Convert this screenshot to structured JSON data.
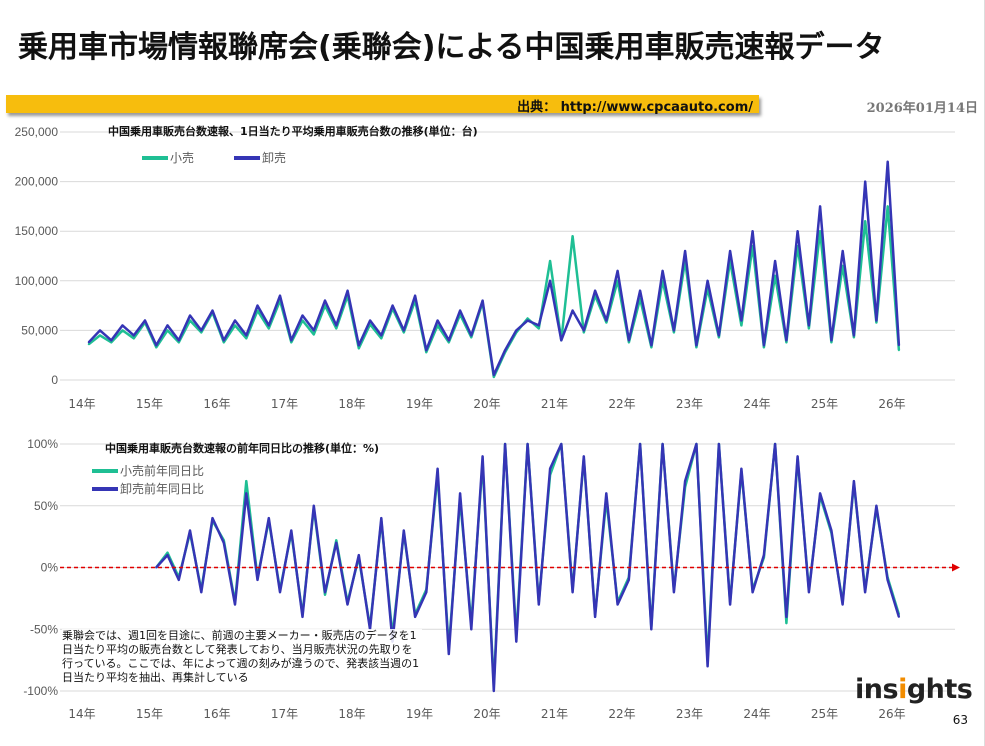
{
  "header": {
    "title": "乗用車市場情報聯席会(乗聯会)による中国乗用車販売速報データ",
    "source": "出典： http://www.cpcaauto.com/",
    "date": "2026年01月14日"
  },
  "note": "乗聯会では、週1回を目途に、前週の主要メーカー・販売店のデータを1日当たり平均の販売台数として発表しており、当月販売状況の先取りを行っている。ここでは、年によって週の刻みが違うので、発表該当週の1日当たり平均を抽出、再集計している",
  "logo": "insights",
  "page_number": "63",
  "colors": {
    "retail": "#1fbf94",
    "wholesale": "#3535b5",
    "zero_line": "#e00000",
    "source_bar": "#f7bd0d"
  },
  "chart_data": [
    {
      "type": "line",
      "title": "中国乗用車販売台数速報、1日当たり平均乗用車販売台数の推移(単位：台)",
      "ylim": [
        0,
        250000
      ],
      "yticks": [
        "0",
        "50,000",
        "100,000",
        "150,000",
        "200,000",
        "250,000"
      ],
      "ytick_values": [
        0,
        50000,
        100000,
        150000,
        200000,
        250000
      ],
      "xlim": [
        2014,
        2026.4
      ],
      "xticks": [
        "14年",
        "15年",
        "16年",
        "17年",
        "18年",
        "19年",
        "20年",
        "21年",
        "22年",
        "23年",
        "24年",
        "25年",
        "26年"
      ],
      "legend": "top-left",
      "grid": true,
      "x_start": 2014.1,
      "x_step_years": 0.1667,
      "series": [
        {
          "name": "小売",
          "values": [
            36000,
            45000,
            38000,
            50000,
            42000,
            58000,
            33000,
            50000,
            38000,
            60000,
            48000,
            68000,
            38000,
            55000,
            42000,
            70000,
            52000,
            80000,
            38000,
            60000,
            46000,
            75000,
            52000,
            85000,
            32000,
            56000,
            42000,
            72000,
            48000,
            80000,
            28000,
            55000,
            38000,
            66000,
            43000,
            78000,
            3000,
            28000,
            48000,
            62000,
            52000,
            120000,
            40000,
            145000,
            48000,
            85000,
            58000,
            100000,
            38000,
            82000,
            33000,
            100000,
            48000,
            120000,
            33000,
            92000,
            43000,
            120000,
            55000,
            135000,
            33000,
            105000,
            38000,
            135000,
            52000,
            150000,
            38000,
            115000,
            43000,
            160000,
            58000,
            175000,
            30000
          ]
        },
        {
          "name": "卸売",
          "values": [
            38000,
            50000,
            40000,
            55000,
            45000,
            60000,
            35000,
            55000,
            40000,
            65000,
            50000,
            70000,
            40000,
            60000,
            45000,
            75000,
            55000,
            85000,
            40000,
            65000,
            50000,
            80000,
            55000,
            90000,
            35000,
            60000,
            45000,
            75000,
            50000,
            85000,
            30000,
            60000,
            40000,
            70000,
            45000,
            80000,
            5000,
            30000,
            50000,
            60000,
            55000,
            100000,
            40000,
            70000,
            50000,
            90000,
            60000,
            110000,
            40000,
            90000,
            35000,
            110000,
            50000,
            130000,
            35000,
            100000,
            45000,
            130000,
            60000,
            150000,
            35000,
            120000,
            40000,
            150000,
            55000,
            175000,
            40000,
            130000,
            45000,
            200000,
            60000,
            220000,
            35000
          ]
        }
      ]
    },
    {
      "type": "line",
      "title": "中国乗用車販売台数速報の前年同日比の推移(単位：%)",
      "ylim": [
        -100,
        100
      ],
      "yticks": [
        "-100%",
        "-50%",
        "0%",
        "50%",
        "100%"
      ],
      "ytick_values": [
        -100,
        -50,
        0,
        50,
        100
      ],
      "xlim": [
        2014,
        2026.4
      ],
      "xticks": [
        "14年",
        "15年",
        "16年",
        "17年",
        "18年",
        "19年",
        "20年",
        "21年",
        "22年",
        "23年",
        "24年",
        "25年",
        "26年"
      ],
      "legend": "top-left",
      "grid": true,
      "reference_line": 0,
      "x_start": 2015.1,
      "x_step_years": 0.1667,
      "series": [
        {
          "name": "小売前年同日比",
          "values": [
            0,
            12,
            -8,
            28,
            -18,
            38,
            22,
            -28,
            70,
            -8,
            38,
            -18,
            28,
            -38,
            48,
            -22,
            22,
            -28,
            8,
            -48,
            38,
            -55,
            28,
            -38,
            -18,
            75,
            -65,
            55,
            -45,
            85,
            -95,
            100,
            -55,
            100,
            -28,
            75,
            100,
            -18,
            88,
            -38,
            55,
            -28,
            -8,
            100,
            -48,
            100,
            -18,
            65,
            100,
            -75,
            100,
            -28,
            78,
            -18,
            8,
            100,
            -45,
            88,
            -18,
            58,
            28,
            -28,
            68,
            -18,
            48,
            -8,
            -38
          ]
        },
        {
          "name": "卸売前年同日比",
          "values": [
            0,
            10,
            -10,
            30,
            -20,
            40,
            20,
            -30,
            60,
            -10,
            40,
            -20,
            30,
            -40,
            50,
            -20,
            20,
            -30,
            10,
            -50,
            40,
            -60,
            30,
            -40,
            -20,
            80,
            -70,
            60,
            -50,
            90,
            -100,
            100,
            -60,
            100,
            -30,
            80,
            100,
            -20,
            90,
            -40,
            60,
            -30,
            -10,
            100,
            -50,
            100,
            -20,
            70,
            100,
            -80,
            100,
            -30,
            80,
            -20,
            10,
            100,
            -40,
            90,
            -20,
            60,
            30,
            -30,
            70,
            -20,
            50,
            -10,
            -40
          ]
        }
      ]
    }
  ]
}
